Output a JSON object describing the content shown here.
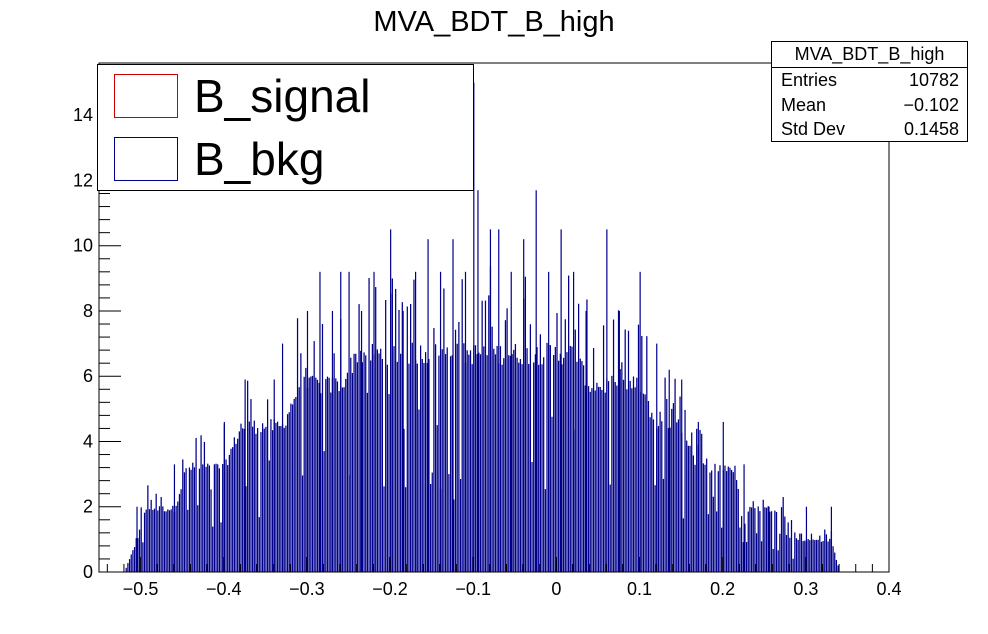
{
  "chart_data": {
    "type": "bar",
    "title": "MVA_BDT_B_high",
    "xlim": [
      -0.55,
      0.4
    ],
    "ylim": [
      0,
      15.6
    ],
    "x_ticks": [
      -0.5,
      -0.4,
      -0.3,
      -0.2,
      -0.1,
      0,
      0.1,
      0.2,
      0.3,
      0.4
    ],
    "x_tick_labels": [
      "−0.5",
      "−0.4",
      "−0.3",
      "−0.2",
      "−0.1",
      "0",
      "0.1",
      "0.2",
      "0.3",
      "0.4"
    ],
    "y_ticks": [
      0,
      2,
      4,
      6,
      8,
      10,
      12,
      14
    ],
    "y_tick_labels": [
      "0",
      "2",
      "4",
      "6",
      "8",
      "10",
      "12",
      "14"
    ],
    "bin_width": 0.002,
    "series": [
      {
        "name": "B_bkg",
        "color": "#00008b",
        "envelope": [
          {
            "x": -0.52,
            "y": 0
          },
          {
            "x": -0.505,
            "y": 1
          },
          {
            "x": -0.495,
            "y": 2
          },
          {
            "x": -0.46,
            "y": 2
          },
          {
            "x": -0.445,
            "y": 3.3
          },
          {
            "x": -0.4,
            "y": 3.3
          },
          {
            "x": -0.38,
            "y": 4.6
          },
          {
            "x": -0.33,
            "y": 4.6
          },
          {
            "x": -0.31,
            "y": 5.9
          },
          {
            "x": -0.26,
            "y": 5.9
          },
          {
            "x": -0.24,
            "y": 6.9
          },
          {
            "x": -0.1,
            "y": 6.9
          },
          {
            "x": 0.0,
            "y": 6.9
          },
          {
            "x": 0.02,
            "y": 6.9
          },
          {
            "x": 0.04,
            "y": 5.9
          },
          {
            "x": 0.1,
            "y": 5.9
          },
          {
            "x": 0.12,
            "y": 4.6
          },
          {
            "x": 0.15,
            "y": 4.6
          },
          {
            "x": 0.17,
            "y": 3.3
          },
          {
            "x": 0.21,
            "y": 3.3
          },
          {
            "x": 0.225,
            "y": 2
          },
          {
            "x": 0.27,
            "y": 2
          },
          {
            "x": 0.29,
            "y": 1
          },
          {
            "x": 0.33,
            "y": 1
          },
          {
            "x": 0.34,
            "y": 0
          }
        ],
        "spikes": [
          {
            "x": -0.505,
            "y": 2
          },
          {
            "x": -0.46,
            "y": 3.3
          },
          {
            "x": -0.4,
            "y": 4.6
          },
          {
            "x": -0.375,
            "y": 5.9
          },
          {
            "x": -0.34,
            "y": 5.9
          },
          {
            "x": -0.33,
            "y": 7.0
          },
          {
            "x": -0.3,
            "y": 8.0
          },
          {
            "x": -0.285,
            "y": 9.2
          },
          {
            "x": -0.27,
            "y": 8.0
          },
          {
            "x": -0.26,
            "y": 9.2
          },
          {
            "x": -0.25,
            "y": 9.2
          },
          {
            "x": -0.235,
            "y": 8.0
          },
          {
            "x": -0.22,
            "y": 9.2
          },
          {
            "x": -0.2,
            "y": 10.5
          },
          {
            "x": -0.185,
            "y": 8.0
          },
          {
            "x": -0.17,
            "y": 9.2
          },
          {
            "x": -0.155,
            "y": 10.2
          },
          {
            "x": -0.14,
            "y": 9.2
          },
          {
            "x": -0.125,
            "y": 10.2
          },
          {
            "x": -0.11,
            "y": 9.2
          },
          {
            "x": -0.1,
            "y": 15
          },
          {
            "x": -0.095,
            "y": 11.7
          },
          {
            "x": -0.08,
            "y": 10.5
          },
          {
            "x": -0.07,
            "y": 10.5
          },
          {
            "x": -0.055,
            "y": 9.2
          },
          {
            "x": -0.04,
            "y": 10.2
          },
          {
            "x": -0.025,
            "y": 11.7
          },
          {
            "x": -0.01,
            "y": 9.2
          },
          {
            "x": 0.005,
            "y": 10.5
          },
          {
            "x": 0.02,
            "y": 9.2
          },
          {
            "x": 0.035,
            "y": 8.0
          },
          {
            "x": 0.06,
            "y": 10.5
          },
          {
            "x": 0.075,
            "y": 8.0
          },
          {
            "x": 0.1,
            "y": 9.2
          },
          {
            "x": 0.12,
            "y": 7.0
          },
          {
            "x": 0.135,
            "y": 6.2
          },
          {
            "x": 0.15,
            "y": 5.9
          },
          {
            "x": 0.17,
            "y": 4.6
          },
          {
            "x": 0.2,
            "y": 4.6
          },
          {
            "x": 0.225,
            "y": 3.3
          },
          {
            "x": 0.255,
            "y": 2
          },
          {
            "x": 0.3,
            "y": 2
          },
          {
            "x": 0.33,
            "y": 2
          }
        ]
      },
      {
        "name": "B_signal",
        "color": "#cc0000",
        "values": []
      }
    ],
    "legend": {
      "position": "top-left",
      "entries": [
        "B_signal",
        "B_bkg"
      ]
    },
    "stats": {
      "title": "MVA_BDT_B_high",
      "rows": [
        {
          "label": "Entries",
          "value": "10782"
        },
        {
          "label": "Mean",
          "value": "−0.102"
        },
        {
          "label": "Std Dev",
          "value": "0.1458"
        }
      ]
    }
  }
}
